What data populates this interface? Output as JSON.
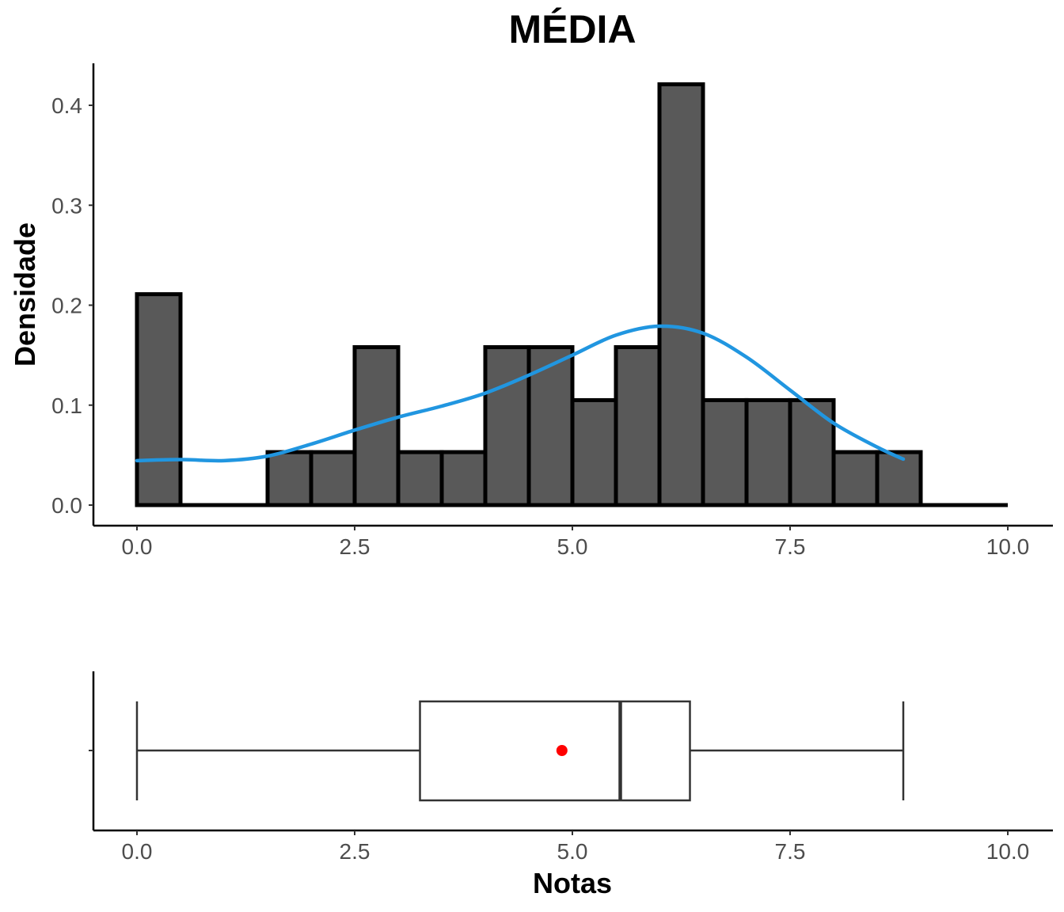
{
  "title": "MÉDIA",
  "chart_data": [
    {
      "type": "bar",
      "subtype": "histogram",
      "title": "MÉDIA",
      "xlabel": "",
      "ylabel": "Densidade",
      "xlim": [
        -0.25,
        10.25
      ],
      "ylim": [
        -0.02,
        0.44
      ],
      "xticks": [
        0,
        2.5,
        5,
        7.5,
        10
      ],
      "xtick_labels": [
        "0.0",
        "2.5",
        "5.0",
        "7.5",
        "10.0"
      ],
      "yticks": [
        0,
        0.1,
        0.2,
        0.3,
        0.4
      ],
      "ytick_labels": [
        "0.0",
        "0.1",
        "0.2",
        "0.3",
        "0.4"
      ],
      "grid": false,
      "bin_width": 0.5,
      "bins": [
        {
          "x0": 0.0,
          "x1": 0.5,
          "density": 0.211
        },
        {
          "x0": 0.5,
          "x1": 1.0,
          "density": 0.0
        },
        {
          "x0": 1.0,
          "x1": 1.5,
          "density": 0.0
        },
        {
          "x0": 1.5,
          "x1": 2.0,
          "density": 0.053
        },
        {
          "x0": 2.0,
          "x1": 2.5,
          "density": 0.053
        },
        {
          "x0": 2.5,
          "x1": 3.0,
          "density": 0.158
        },
        {
          "x0": 3.0,
          "x1": 3.5,
          "density": 0.053
        },
        {
          "x0": 3.5,
          "x1": 4.0,
          "density": 0.053
        },
        {
          "x0": 4.0,
          "x1": 4.5,
          "density": 0.158
        },
        {
          "x0": 4.5,
          "x1": 5.0,
          "density": 0.158
        },
        {
          "x0": 5.0,
          "x1": 5.5,
          "density": 0.105
        },
        {
          "x0": 5.5,
          "x1": 6.0,
          "density": 0.158
        },
        {
          "x0": 6.0,
          "x1": 6.5,
          "density": 0.421
        },
        {
          "x0": 6.5,
          "x1": 7.0,
          "density": 0.105
        },
        {
          "x0": 7.0,
          "x1": 7.5,
          "density": 0.105
        },
        {
          "x0": 7.5,
          "x1": 8.0,
          "density": 0.105
        },
        {
          "x0": 8.0,
          "x1": 8.5,
          "density": 0.053
        },
        {
          "x0": 8.5,
          "x1": 9.0,
          "density": 0.053
        },
        {
          "x0": 9.0,
          "x1": 9.5,
          "density": 0.0
        },
        {
          "x0": 9.5,
          "x1": 10.0,
          "density": 0.0
        }
      ],
      "bar_fill": "#595959",
      "bar_stroke": "#000000",
      "density_curve": {
        "color": "#2196e0",
        "x": [
          0.0,
          0.5,
          1.0,
          1.5,
          2.0,
          2.5,
          3.0,
          3.5,
          4.0,
          4.5,
          5.0,
          5.5,
          6.0,
          6.5,
          7.0,
          7.5,
          8.0,
          8.5,
          8.8
        ],
        "y": [
          0.0445,
          0.0455,
          0.0445,
          0.049,
          0.061,
          0.075,
          0.088,
          0.099,
          0.112,
          0.13,
          0.15,
          0.17,
          0.179,
          0.172,
          0.148,
          0.115,
          0.082,
          0.058,
          0.046
        ]
      }
    },
    {
      "type": "boxplot",
      "xlabel": "Notas",
      "ylabel": "",
      "xlim": [
        -0.25,
        10.25
      ],
      "xticks": [
        0,
        2.5,
        5,
        7.5,
        10
      ],
      "xtick_labels": [
        "0.0",
        "2.5",
        "5.0",
        "7.5",
        "10.0"
      ],
      "grid": false,
      "whisker_low": 0.0,
      "q1": 3.25,
      "median": 5.55,
      "q3": 6.35,
      "whisker_high": 8.8,
      "mean": 4.88,
      "mean_color": "#ff0000",
      "box_stroke": "#333333"
    }
  ]
}
